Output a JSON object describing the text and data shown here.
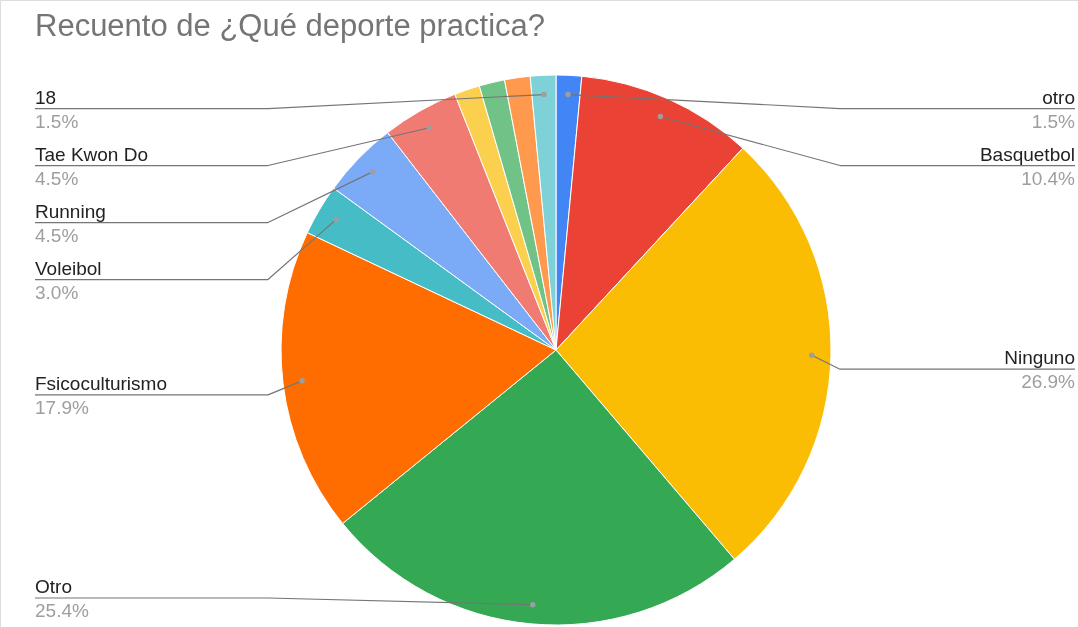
{
  "chart_data": {
    "type": "pie",
    "title": "Recuento de ¿Qué deporte practica?",
    "categories": [
      "otro",
      "Basquetbol",
      "Ninguno",
      "Otro",
      "Fsicoculturismo",
      "Voleibol",
      "Running",
      "Tae Kwon Do",
      null,
      null,
      null,
      "18"
    ],
    "values": [
      1.5,
      10.4,
      26.9,
      25.4,
      17.9,
      3.0,
      4.5,
      4.5,
      1.5,
      1.5,
      1.5,
      1.5
    ],
    "value_labels": [
      "1.5%",
      "10.4%",
      "26.9%",
      "25.4%",
      "17.9%",
      "3.0%",
      "4.5%",
      "4.5%",
      null,
      null,
      null,
      "1.5%"
    ],
    "colors": [
      "#4285f4",
      "#ea4335",
      "#fbbc04",
      "#34a853",
      "#ff6d01",
      "#46bdc6",
      "#7baaf7",
      "#f07b72",
      "#fcd04f",
      "#71c287",
      "#ff994d",
      "#7ed1d7"
    ]
  }
}
